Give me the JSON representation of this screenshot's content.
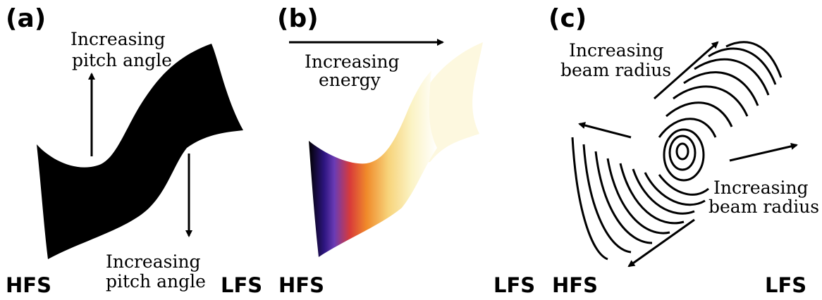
{
  "panels": [
    {
      "label": "(a)",
      "hfs": "HFS",
      "lfs": "LFS",
      "annotation_up": [
        "Increasing",
        "pitch angle"
      ],
      "annotation_down": [
        "Increasing",
        "pitch angle"
      ]
    },
    {
      "label": "(b)",
      "hfs": "HFS",
      "lfs": "LFS",
      "annotation": [
        "Increasing",
        "energy"
      ],
      "gradient_colors": [
        "#000000",
        "#2d1580",
        "#6a3bb5",
        "#d83a3a",
        "#f08a2a",
        "#f7d37a",
        "#fbf3c4",
        "#ffffff"
      ]
    },
    {
      "label": "(c)",
      "hfs": "HFS",
      "lfs": "LFS",
      "annotation_upper": [
        "Increasing",
        "beam radius"
      ],
      "annotation_lower": [
        "Increasing",
        "beam radius"
      ]
    }
  ]
}
